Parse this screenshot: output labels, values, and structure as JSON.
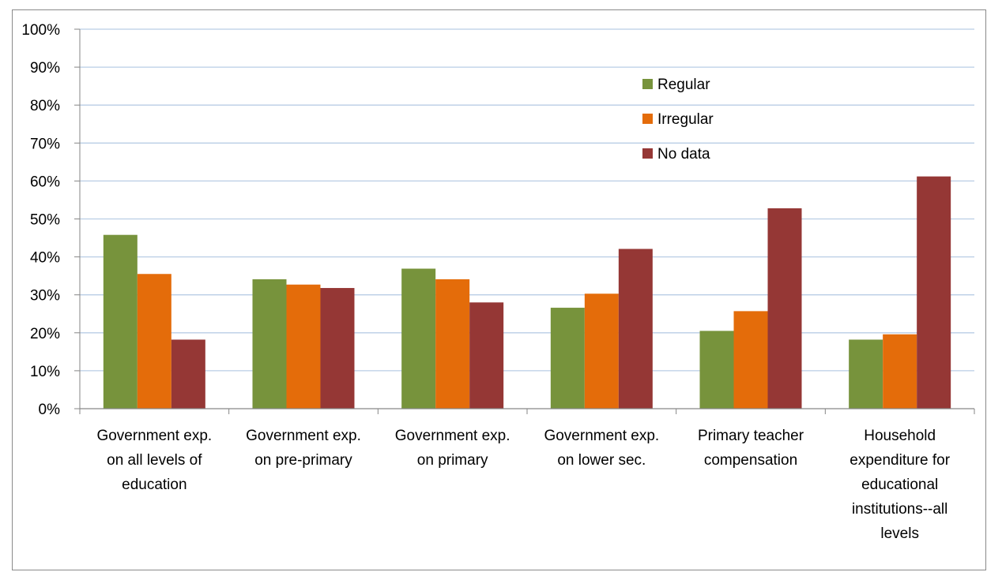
{
  "chart_data": {
    "type": "bar",
    "title": "",
    "xlabel": "",
    "ylabel": "",
    "ylim": [
      0,
      100
    ],
    "y_ticks": [
      "0%",
      "10%",
      "20%",
      "30%",
      "40%",
      "50%",
      "60%",
      "70%",
      "80%",
      "90%",
      "100%"
    ],
    "y_tick_values": [
      0,
      10,
      20,
      30,
      40,
      50,
      60,
      70,
      80,
      90,
      100
    ],
    "grid": true,
    "legend_position": "top-right",
    "categories": [
      [
        "Government exp.",
        "on all levels of",
        "education"
      ],
      [
        "Government exp.",
        "on pre-primary"
      ],
      [
        "Government exp.",
        "on primary"
      ],
      [
        "Government exp.",
        "on lower sec."
      ],
      [
        "Primary teacher",
        "compensation"
      ],
      [
        "Household",
        "expenditure for",
        "educational",
        "institutions--all",
        "levels"
      ]
    ],
    "series": [
      {
        "name": "Regular",
        "color": "#77933c",
        "values": [
          45.8,
          34.1,
          36.9,
          26.6,
          20.5,
          18.2
        ]
      },
      {
        "name": "Irregular",
        "color": "#e46c0a",
        "values": [
          35.5,
          32.7,
          34.1,
          30.3,
          25.7,
          19.6
        ]
      },
      {
        "name": "No data",
        "color": "#953735",
        "values": [
          18.2,
          31.8,
          28.0,
          42.1,
          52.8,
          61.2
        ]
      }
    ],
    "colors": {
      "gridline": "#b9cde5",
      "axis": "#868686",
      "frame": "#8a8a8a"
    }
  }
}
